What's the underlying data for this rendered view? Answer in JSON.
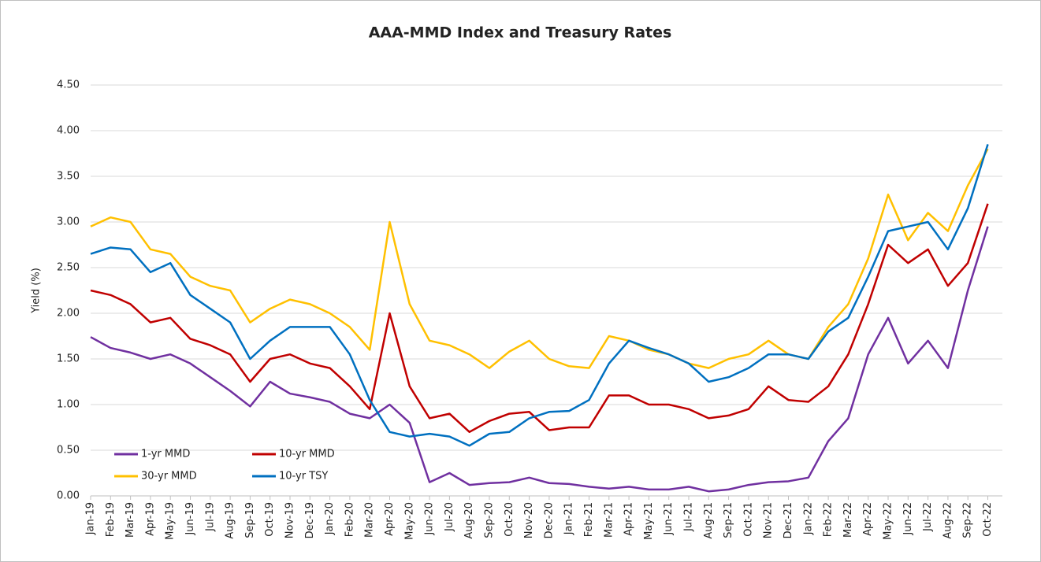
{
  "chart_data": {
    "type": "line",
    "title": "AAA-MMD Index and Treasury Rates",
    "y_label": "Yield (%)",
    "categories": [
      "Jan-19",
      "Feb-19",
      "Mar-19",
      "Apr-19",
      "May-19",
      "Jun-19",
      "Jul-19",
      "Aug-19",
      "Sep-19",
      "Oct-19",
      "Nov-19",
      "Dec-19",
      "Jan-20",
      "Feb-20",
      "Mar-20",
      "Apr-20",
      "May-20",
      "Jun-20",
      "Jul-20",
      "Aug-20",
      "Sep-20",
      "Oct-20",
      "Nov-20",
      "Dec-20",
      "Jan-21",
      "Feb-21",
      "Mar-21",
      "Apr-21",
      "May-21",
      "Jun-21",
      "Jul-21",
      "Aug-21",
      "Sep-21",
      "Oct-21",
      "Nov-21",
      "Dec-21",
      "Jan-22",
      "Feb-22",
      "Mar-22",
      "Apr-22",
      "May-22",
      "Jun-22",
      "Jul-22",
      "Aug-22",
      "Sep-22",
      "Oct-22"
    ],
    "series": [
      {
        "name": "1-yr MMD",
        "color": "#7030a0",
        "values": [
          1.74,
          1.62,
          1.57,
          1.5,
          1.55,
          1.45,
          1.3,
          1.15,
          0.98,
          1.25,
          1.12,
          1.08,
          1.03,
          0.9,
          0.85,
          1.0,
          0.8,
          0.15,
          0.25,
          0.12,
          0.14,
          0.15,
          0.2,
          0.14,
          0.13,
          0.1,
          0.08,
          0.1,
          0.07,
          0.07,
          0.1,
          0.05,
          0.07,
          0.12,
          0.15,
          0.16,
          0.2,
          0.6,
          0.85,
          1.55,
          1.95,
          1.45,
          1.7,
          1.4,
          2.25,
          2.95
        ]
      },
      {
        "name": "10-yr MMD",
        "color": "#c00000",
        "values": [
          2.25,
          2.2,
          2.1,
          1.9,
          1.95,
          1.72,
          1.65,
          1.55,
          1.25,
          1.5,
          1.55,
          1.45,
          1.4,
          1.2,
          0.95,
          2.0,
          1.2,
          0.85,
          0.9,
          0.7,
          0.82,
          0.9,
          0.92,
          0.72,
          0.75,
          0.75,
          1.1,
          1.1,
          1.0,
          1.0,
          0.95,
          0.85,
          0.88,
          0.95,
          1.2,
          1.05,
          1.03,
          1.2,
          1.55,
          2.1,
          2.75,
          2.55,
          2.7,
          2.3,
          2.55,
          3.2
        ]
      },
      {
        "name": "30-yr MMD",
        "color": "#ffc000",
        "values": [
          2.95,
          3.05,
          3.0,
          2.7,
          2.65,
          2.4,
          2.3,
          2.25,
          1.9,
          2.05,
          2.15,
          2.1,
          2.0,
          1.85,
          1.6,
          3.0,
          2.1,
          1.7,
          1.65,
          1.55,
          1.4,
          1.58,
          1.7,
          1.5,
          1.42,
          1.4,
          1.75,
          1.7,
          1.6,
          1.55,
          1.45,
          1.4,
          1.5,
          1.55,
          1.7,
          1.55,
          1.5,
          1.85,
          2.1,
          2.6,
          3.3,
          2.8,
          3.1,
          2.9,
          3.4,
          3.8
        ]
      },
      {
        "name": "10-yr TSY",
        "color": "#0070c0",
        "values": [
          2.65,
          2.72,
          2.7,
          2.45,
          2.55,
          2.2,
          2.05,
          1.9,
          1.5,
          1.7,
          1.85,
          1.85,
          1.85,
          1.55,
          1.05,
          0.7,
          0.65,
          0.68,
          0.65,
          0.55,
          0.68,
          0.7,
          0.85,
          0.92,
          0.93,
          1.05,
          1.45,
          1.7,
          1.62,
          1.55,
          1.45,
          1.25,
          1.3,
          1.4,
          1.55,
          1.55,
          1.5,
          1.8,
          1.95,
          2.4,
          2.9,
          2.95,
          3.0,
          2.7,
          3.15,
          3.85
        ]
      }
    ],
    "ylim": [
      0,
      4.5
    ],
    "yticks": [
      {
        "value": 0,
        "label": "0.00"
      },
      {
        "value": 0.5,
        "label": "0.50"
      },
      {
        "value": 1,
        "label": "1.00"
      },
      {
        "value": 1.5,
        "label": "1.50"
      },
      {
        "value": 2,
        "label": "2.00"
      },
      {
        "value": 2.5,
        "label": "2.50"
      },
      {
        "value": 3,
        "label": "3.00"
      },
      {
        "value": 3.5,
        "label": "3.50"
      },
      {
        "value": 4,
        "label": "4.00"
      },
      {
        "value": 4.5,
        "label": "4.50"
      }
    ],
    "grid": true
  }
}
